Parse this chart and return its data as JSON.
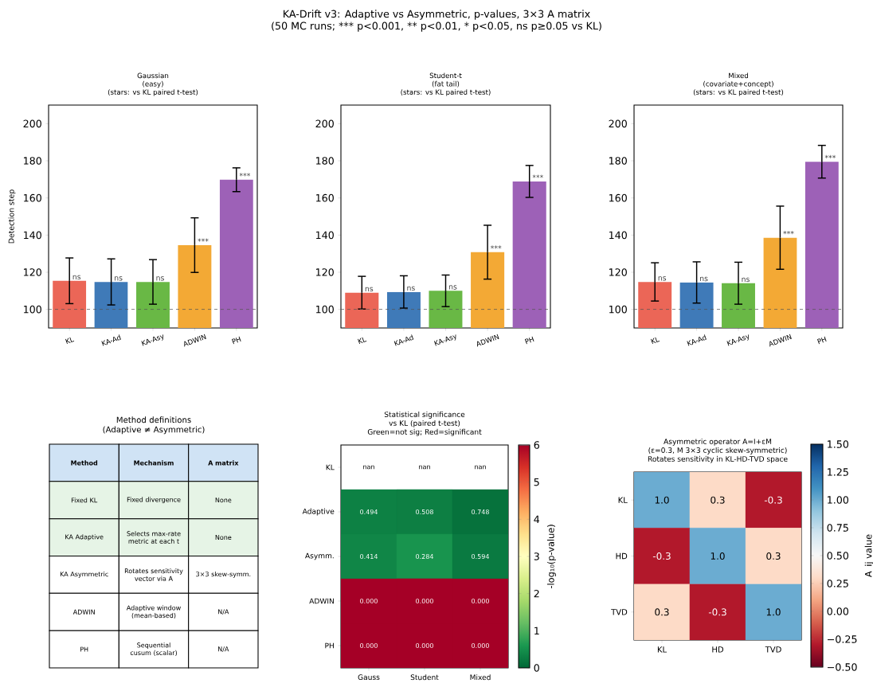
{
  "chart_data": [
    {
      "type": "other",
      "title": "KA-Drift v3: Adaptive vs Asymmetric, p-values, 3×3 A matrix",
      "subtitle": "(50 MC runs; *** p<0.001, ** p<0.01, * p<0.05, ns p≥0.05 vs KL)"
    },
    {
      "type": "bar",
      "title": "Gaussian\n(easy)\n(stars: vs KL paired t-test)",
      "ylabel": "Detection step",
      "categories": [
        "KL",
        "KA-Ad",
        "KA-Asy",
        "ADWIN",
        "PH"
      ],
      "values": [
        115.4,
        114.8,
        114.8,
        134.6,
        169.8
      ],
      "errors": [
        12.3,
        12.4,
        12.0,
        14.7,
        6.4
      ],
      "colors": [
        "#eb6657",
        "#3f7ab8",
        "#69b845",
        "#f3a935",
        "#9d61b7"
      ],
      "value_labels": [
        "ns",
        "ns",
        "ns",
        "***",
        "***"
      ],
      "ylim": [
        90,
        210
      ],
      "yticks": [
        100,
        120,
        140,
        160,
        180,
        200
      ],
      "ref_lines": [
        {
          "axis": "y",
          "value": 100,
          "color": "#555555",
          "line_style": "dashed"
        }
      ]
    },
    {
      "type": "bar",
      "title": "Student-t\n(fat tail)\n(stars: vs KL paired t-test)",
      "categories": [
        "KL",
        "KA-Ad",
        "KA-Asy",
        "ADWIN",
        "PH"
      ],
      "values": [
        109.0,
        109.4,
        110.0,
        130.8,
        168.9
      ],
      "errors": [
        8.8,
        8.7,
        8.5,
        14.5,
        8.6
      ],
      "colors": [
        "#eb6657",
        "#3f7ab8",
        "#69b845",
        "#f3a935",
        "#9d61b7"
      ],
      "value_labels": [
        "ns",
        "ns",
        "ns",
        "***",
        "***"
      ],
      "ylim": [
        90,
        210
      ],
      "yticks": [
        100,
        120,
        140,
        160,
        180,
        200
      ],
      "ref_lines": [
        {
          "axis": "y",
          "value": 100,
          "color": "#555555",
          "line_style": "dashed"
        }
      ]
    },
    {
      "type": "bar",
      "title": "Mixed\n(covariate+concept)\n(stars: vs KL paired t-test)",
      "categories": [
        "KL",
        "KA-Ad",
        "KA-Asy",
        "ADWIN",
        "PH"
      ],
      "values": [
        114.8,
        114.5,
        114.1,
        138.6,
        179.5
      ],
      "errors": [
        10.3,
        11.1,
        11.3,
        17.0,
        8.8
      ],
      "colors": [
        "#eb6657",
        "#3f7ab8",
        "#69b845",
        "#f3a935",
        "#9d61b7"
      ],
      "value_labels": [
        "ns",
        "ns",
        "ns",
        "***",
        "***"
      ],
      "ylim": [
        90,
        210
      ],
      "yticks": [
        100,
        120,
        140,
        160,
        180,
        200
      ],
      "ref_lines": [
        {
          "axis": "y",
          "value": 100,
          "color": "#555555",
          "line_style": "dashed"
        }
      ]
    },
    {
      "type": "other",
      "title": "Method definitions\n(Adaptive ≠ Asymmetric)",
      "categories": [
        "Method",
        "Mechanism",
        "A matrix"
      ],
      "cell_labels": [
        [
          "Fixed KL",
          "Fixed divergence",
          "None"
        ],
        [
          "KA Adaptive",
          "Selects max-rate\nmetric at each t",
          "None"
        ],
        [
          "KA Asymmetric",
          "Rotates sensitivity\nvector via A",
          "3×3 skew-symm."
        ],
        [
          "ADWIN",
          "Adaptive window\n(mean-based)",
          "N/A"
        ],
        [
          "PH",
          "Sequential\ncusum (scalar)",
          "N/A"
        ]
      ]
    },
    {
      "type": "heatmap",
      "title": "Statistical significance\nvs KL (paired t-test)\nGreen=not sig; Red=significant",
      "categories": [
        "Gauss",
        "Student",
        "Mixed"
      ],
      "y_categories": [
        "KL",
        "Adaptive",
        "Asymm.",
        "ADWIN",
        "PH"
      ],
      "cells": [
        [
          null,
          null,
          null
        ],
        [
          0.31,
          0.29,
          0.13
        ],
        [
          0.38,
          0.55,
          0.23
        ],
        [
          6,
          6,
          6
        ],
        [
          6,
          6,
          6
        ]
      ],
      "annotations": [
        "nan",
        "nan",
        "nan",
        "0.494",
        "0.508",
        "0.748",
        "0.414",
        "0.284",
        "0.594",
        "0.000",
        "0.000",
        "0.000",
        "0.000",
        "0.000",
        "0.000"
      ],
      "clim": [
        0,
        6
      ],
      "cticks": [
        0,
        1,
        2,
        3,
        4,
        5,
        6
      ],
      "clabel": "-log₁₀(p-value)"
    },
    {
      "type": "heatmap",
      "title": "Asymmetric operator A=I+εM\n(ε=0.3, M 3×3 cyclic skew-symmetric)\nRotates sensitivity in KL-HD-TVD space",
      "categories": [
        "KL",
        "HD",
        "TVD"
      ],
      "y_categories": [
        "KL",
        "HD",
        "TVD"
      ],
      "cells": [
        [
          1.0,
          0.3,
          -0.3
        ],
        [
          -0.3,
          1.0,
          0.3
        ],
        [
          0.3,
          -0.3,
          1.0
        ]
      ],
      "cell_labels": [
        [
          "1.0",
          "0.3",
          "-0.3"
        ],
        [
          "-0.3",
          "1.0",
          "0.3"
        ],
        [
          "0.3",
          "-0.3",
          "1.0"
        ]
      ],
      "clim": [
        -0.5,
        1.5
      ],
      "cticks": [
        {
          "value": -0.5,
          "label": "−0.50"
        },
        {
          "value": -0.25,
          "label": "−0.25"
        },
        {
          "value": 0,
          "label": "0.00"
        },
        {
          "value": 0.25,
          "label": "0.25"
        },
        {
          "value": 0.5,
          "label": "0.50"
        },
        {
          "value": 0.75,
          "label": "0.75"
        },
        {
          "value": 1.0,
          "label": "1.00"
        },
        {
          "value": 1.25,
          "label": "1.25"
        },
        {
          "value": 1.5,
          "label": "1.50"
        }
      ],
      "clabel": "A_ij value"
    }
  ]
}
